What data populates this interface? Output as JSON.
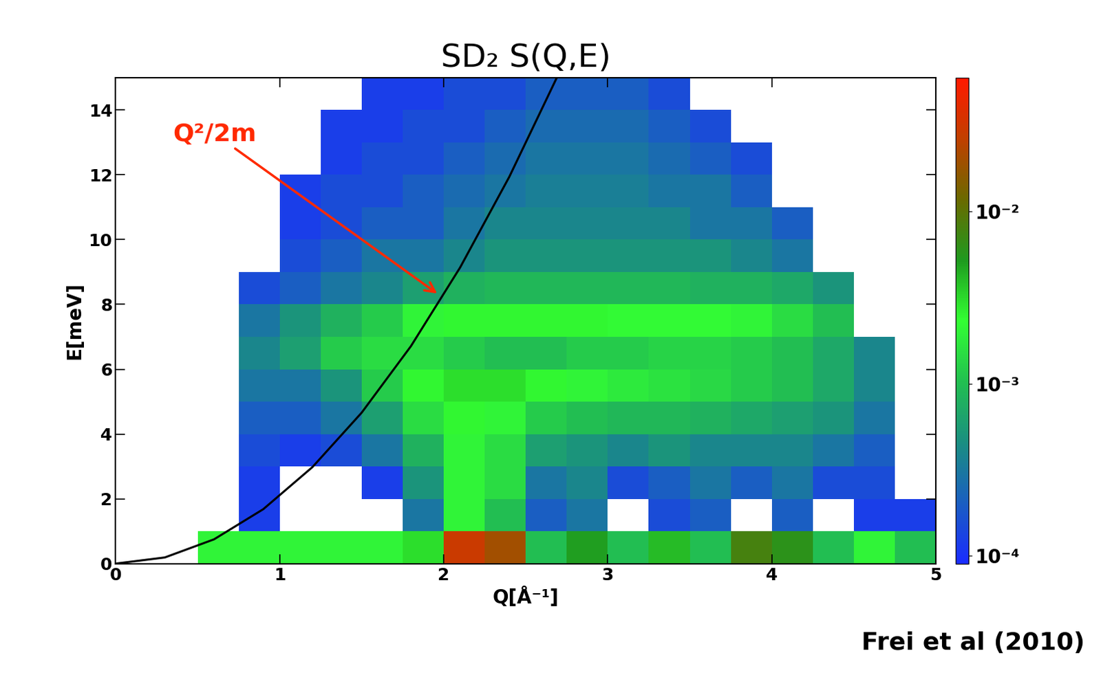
{
  "chart_data": {
    "type": "heatmap",
    "title": "SD₂ S(Q,E)",
    "x_label": "Q[Å⁻¹]",
    "y_label": "E[meV]",
    "source": "Frei et al (2010)",
    "xlim": [
      0,
      5
    ],
    "ylim": [
      0,
      15
    ],
    "xticks": [
      0,
      1,
      2,
      3,
      4,
      5
    ],
    "yticks": [
      0,
      2,
      4,
      6,
      8,
      10,
      12,
      14
    ],
    "x_edges": [
      0,
      0.25,
      0.5,
      0.75,
      1,
      1.25,
      1.5,
      1.75,
      2,
      2.25,
      2.5,
      2.75,
      3,
      3.25,
      3.5,
      3.75,
      4,
      4.25,
      4.5,
      4.75,
      5
    ],
    "y_edges": [
      0,
      1,
      2,
      3,
      4,
      5,
      6,
      7,
      8,
      9,
      10,
      11,
      12,
      13,
      14,
      15
    ],
    "cells": [
      [
        null,
        null,
        0.002,
        0.002,
        0.002,
        0.002,
        0.002,
        0.003,
        0.03,
        0.02,
        0.001,
        0.005,
        0.001,
        0.004,
        0.001,
        0.008,
        0.006,
        0.001,
        0.002,
        0.001
      ],
      [
        null,
        null,
        null,
        0.00012,
        null,
        null,
        null,
        0.0003,
        0.002,
        0.001,
        0.0002,
        0.0003,
        null,
        0.00015,
        0.0002,
        null,
        0.0002,
        null,
        0.00012,
        0.00012
      ],
      [
        null,
        null,
        null,
        0.00012,
        null,
        null,
        0.00012,
        0.0005,
        0.002,
        0.0015,
        0.0003,
        0.0004,
        0.00015,
        0.0002,
        0.0003,
        0.0002,
        0.0003,
        0.00015,
        0.00015,
        null
      ],
      [
        null,
        null,
        null,
        0.00015,
        0.00012,
        0.00015,
        0.0003,
        0.0008,
        0.002,
        0.0015,
        0.0006,
        0.0005,
        0.0004,
        0.0005,
        0.0004,
        0.0004,
        0.0004,
        0.0003,
        0.0002,
        null
      ],
      [
        null,
        null,
        null,
        0.0002,
        0.0002,
        0.0003,
        0.0006,
        0.0015,
        0.0025,
        0.002,
        0.0012,
        0.001,
        0.0009,
        0.0009,
        0.0008,
        0.0007,
        0.0006,
        0.0005,
        0.0003,
        null
      ],
      [
        null,
        null,
        null,
        0.0003,
        0.0003,
        0.0005,
        0.0012,
        0.0025,
        0.003,
        0.003,
        0.0025,
        0.002,
        0.0018,
        0.0016,
        0.0014,
        0.0012,
        0.001,
        0.0007,
        0.0004,
        null
      ],
      [
        null,
        null,
        null,
        0.0004,
        0.0006,
        0.0012,
        0.0015,
        0.0015,
        0.0012,
        0.001,
        0.001,
        0.0012,
        0.0012,
        0.0013,
        0.0013,
        0.0012,
        0.001,
        0.0007,
        0.0004,
        null
      ],
      [
        null,
        null,
        null,
        0.0003,
        0.0005,
        0.0008,
        0.0012,
        0.002,
        0.0025,
        0.0025,
        0.0025,
        0.0025,
        0.0022,
        0.0022,
        0.0022,
        0.002,
        0.0015,
        0.001,
        null,
        null
      ],
      [
        null,
        null,
        null,
        0.00015,
        0.0002,
        0.0003,
        0.0004,
        0.0006,
        0.0008,
        0.0009,
        0.0009,
        0.0009,
        0.0009,
        0.0009,
        0.0008,
        0.0008,
        0.0007,
        0.0005,
        null,
        null
      ],
      [
        null,
        null,
        null,
        null,
        0.00015,
        0.0002,
        0.0003,
        0.0003,
        0.0004,
        0.0005,
        0.0005,
        0.0005,
        0.0005,
        0.0005,
        0.0005,
        0.0004,
        0.0003,
        null,
        null,
        null
      ],
      [
        null,
        null,
        null,
        null,
        0.00012,
        0.00015,
        0.0002,
        0.0002,
        0.0003,
        0.0004,
        0.0004,
        0.0004,
        0.0004,
        0.0004,
        0.0003,
        0.0003,
        0.0002,
        null,
        null,
        null
      ],
      [
        null,
        null,
        null,
        null,
        0.00012,
        0.00015,
        0.00015,
        0.0002,
        0.00025,
        0.0003,
        0.00035,
        0.00035,
        0.00035,
        0.0003,
        0.0003,
        0.0002,
        null,
        null,
        null,
        null
      ],
      [
        null,
        null,
        null,
        null,
        null,
        0.00012,
        0.00015,
        0.00015,
        0.0002,
        0.00025,
        0.0003,
        0.0003,
        0.0003,
        0.00025,
        0.0002,
        0.00015,
        null,
        null,
        null,
        null
      ],
      [
        null,
        null,
        null,
        null,
        null,
        0.00012,
        0.00012,
        0.00015,
        0.00015,
        0.0002,
        0.00025,
        0.00025,
        0.00025,
        0.0002,
        0.00015,
        null,
        null,
        null,
        null,
        null
      ],
      [
        null,
        null,
        null,
        null,
        null,
        null,
        0.00012,
        0.00012,
        0.00015,
        0.00015,
        0.0002,
        0.0002,
        0.0002,
        0.00015,
        null,
        null,
        null,
        null,
        null,
        null
      ]
    ],
    "colorbar_lim": [
      9e-05,
      0.06
    ],
    "colorbar_ticks": [
      {
        "value": 0.0001,
        "label": "10⁻⁴"
      },
      {
        "value": 0.001,
        "label": "10⁻³"
      },
      {
        "value": 0.01,
        "label": "10⁻²"
      }
    ],
    "log": "colorbar",
    "curve": {
      "color": "#000000",
      "line_style": "solid",
      "x": [
        0,
        0.3,
        0.6,
        0.9,
        1.2,
        1.5,
        1.8,
        2.1,
        2.4,
        2.7
      ],
      "values": [
        0,
        0.19,
        0.75,
        1.68,
        2.98,
        4.66,
        6.71,
        9.14,
        11.94,
        15.11
      ]
    },
    "annotation": {
      "text": "Q²/2m",
      "x": 1.97,
      "y": 8.3,
      "color": "#ff2a00"
    }
  }
}
